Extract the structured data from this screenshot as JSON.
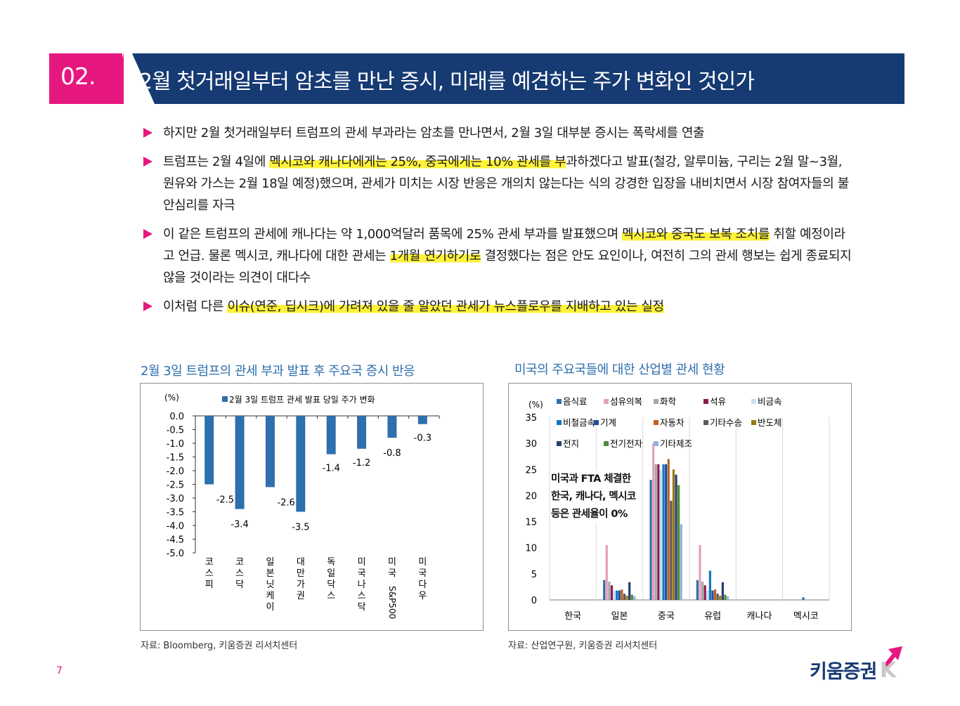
{
  "header": {
    "number": "02.",
    "title": "2월 첫거래일부터 암초를 만난 증시, 미래를 예견하는 주가 변화인 것인가"
  },
  "bullets": [
    {
      "parts": [
        {
          "t": "하지만 2월 첫거래일부터 트럼프의 관세 부과라는 암초를 만나면서, 2월 3일 대부분 증시는 폭락세를 연출",
          "h": false
        }
      ]
    },
    {
      "parts": [
        {
          "t": "트럼프는 2월 4일에 ",
          "h": false
        },
        {
          "t": "멕시코와 캐나다에게는 25%, 중국에게는 10% 관세를 부",
          "h": true
        },
        {
          "t": "과하겠다고 발표(철강, 알루미늄, 구리는 2월 말~3월, 원유와 가스는 2월 18일 예정)했으며, 관세가 미치는 시장 반응은 개의치 않는다는 식의 강경한 입장을 내비치면서 시장 참여자들의 불안심리를 자극",
          "h": false
        }
      ]
    },
    {
      "parts": [
        {
          "t": "이 같은 트럼프의 관세에 캐나다는 약 1,000억달러 품목에 25% 관세 부과를 발표했으며 ",
          "h": false
        },
        {
          "t": "멕시코와 중국도 보복 조치를",
          "h": true
        },
        {
          "t": " 취할 예정이라고 언급. 물론 멕시코, 캐나다에 대한 관세는 ",
          "h": false
        },
        {
          "t": "1개월 연기하기로",
          "h": true
        },
        {
          "t": " 결정했다는 점은 안도 요인이나, 여전히 그의 관세 행보는 쉽게 종료되지 않을 것이라는 의견이 대다수",
          "h": false
        }
      ]
    },
    {
      "parts": [
        {
          "t": "이처럼 다른 ",
          "h": false
        },
        {
          "t": "이슈(연준, 딥시크)에 가려져 있을 줄 알았던 관세가 뉴스플로우를 지배하고 있는 실정",
          "h": true
        }
      ]
    }
  ],
  "colors": {
    "pink": "#e6177f",
    "navy": "#163a72",
    "highlight": "#fff23a",
    "bar_blue": "#2e6fad"
  },
  "chart_data": [
    {
      "type": "bar",
      "title": "2월 3일 트럼프의 관세 부과 발표 후 주요국 증시 반응",
      "ylabel": "(%)",
      "ylim": [
        -5.0,
        0.0
      ],
      "yticks": [
        "0.0",
        "-0.5",
        "-1.0",
        "-1.5",
        "-2.0",
        "-2.5",
        "-3.0",
        "-3.5",
        "-4.0",
        "-4.5",
        "-5.0"
      ],
      "categories": [
        "코스피",
        "코스닥",
        "일본 닛케이",
        "대만 가권",
        "독일 닥스",
        "미국 나스닥",
        "미국 S&P500",
        "미국 다우"
      ],
      "series": [
        {
          "name": "2월 3일 트럼프 관세 발표 당일 주가 변화",
          "values": [
            -2.5,
            -3.4,
            -2.6,
            -3.5,
            -1.4,
            -1.2,
            -0.8,
            -0.3
          ]
        }
      ],
      "value_labels": [
        "-2.5",
        "-3.4",
        "-2.6",
        "-3.5",
        "-1.4",
        "-1.2",
        "-0.8",
        "-0.3"
      ],
      "source": "자료: Bloomberg, 키움증권 리서치센터"
    },
    {
      "type": "bar",
      "title": "미국의 주요국들에 대한 산업별 관세 현황",
      "ylabel": "(%)",
      "ylim": [
        0,
        35
      ],
      "yticks": [
        "0",
        "5",
        "10",
        "15",
        "20",
        "25",
        "30",
        "35"
      ],
      "categories": [
        "한국",
        "일본",
        "중국",
        "유럽",
        "캐나다",
        "멕시코"
      ],
      "series": [
        {
          "name": "음식료",
          "color": "#2e6fad",
          "values": [
            0,
            3.8,
            23,
            3.8,
            0,
            0
          ]
        },
        {
          "name": "섬유의복",
          "color": "#e3a1b8",
          "values": [
            0,
            10.5,
            30,
            10.5,
            0,
            0
          ]
        },
        {
          "name": "화학",
          "color": "#a6a6a6",
          "values": [
            0,
            3.5,
            26,
            3.5,
            0,
            0
          ]
        },
        {
          "name": "석유",
          "color": "#8e1b4f",
          "values": [
            0,
            2.8,
            26,
            2.8,
            0,
            0
          ]
        },
        {
          "name": "비금속",
          "color": "#c8dff0",
          "values": [
            0,
            1.8,
            25,
            1.8,
            0,
            0
          ]
        },
        {
          "name": "비철금속",
          "color": "#1177c0",
          "values": [
            0,
            1.8,
            26,
            5.6,
            0,
            0.5
          ]
        },
        {
          "name": "기계",
          "color": "#1f4e9a",
          "values": [
            0,
            1.8,
            26,
            1.8,
            0,
            0
          ]
        },
        {
          "name": "자동차",
          "color": "#c0601f",
          "values": [
            0,
            2.0,
            27,
            2.0,
            0,
            0
          ]
        },
        {
          "name": "기타수송",
          "color": "#5a5a5a",
          "values": [
            0,
            1.2,
            19,
            1.2,
            0,
            0
          ]
        },
        {
          "name": "반도체",
          "color": "#9a7a12",
          "values": [
            0,
            0.8,
            25,
            0.8,
            0,
            0
          ]
        },
        {
          "name": "전지",
          "color": "#243d72",
          "values": [
            0,
            3.4,
            24,
            3.4,
            0,
            0
          ]
        },
        {
          "name": "전기전자",
          "color": "#4f8a3a",
          "values": [
            0,
            1.0,
            22,
            1.0,
            0,
            0
          ]
        },
        {
          "name": "기타제조",
          "color": "#8fb3de",
          "values": [
            0,
            0.7,
            14.5,
            0.7,
            0,
            0
          ]
        }
      ],
      "annotation": [
        "미국과 FTA 체결한",
        "한국, 캐나다, 멕시코",
        "등은 관세율이 0%"
      ],
      "source": "자료: 산업연구원, 키움증권 리서치센터"
    }
  ],
  "page_number": "7",
  "logo": {
    "text": "키움증권"
  }
}
